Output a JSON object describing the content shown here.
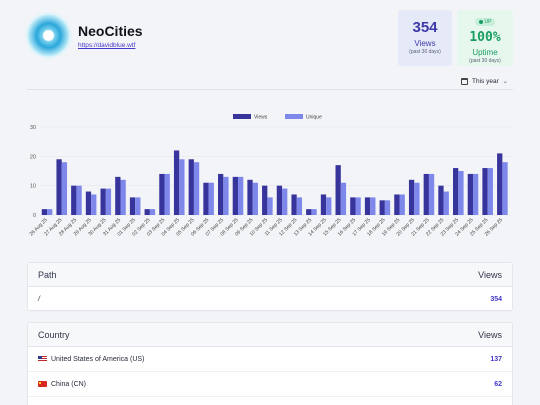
{
  "site": {
    "name": "NeoCities",
    "url": "https://davidblue.wtf"
  },
  "stats": {
    "views": {
      "value": "354",
      "label": "Views",
      "sub": "(past 30 days)"
    },
    "uptime": {
      "badge": "UP",
      "value": "100%",
      "label": "Uptime",
      "sub": "(past 30 days)"
    }
  },
  "period_selector": {
    "label": "This year"
  },
  "colors": {
    "views": "#37349c",
    "unique": "#7e87ea",
    "accent": "#4338ca",
    "uptime": "#199e62"
  },
  "chart_data": {
    "type": "bar",
    "categories": [
      "26 Aug 25",
      "27 Aug 25",
      "28 Aug 25",
      "29 Aug 25",
      "30 Aug 25",
      "31 Aug 25",
      "01 Sep 25",
      "02 Sep 25",
      "03 Sep 25",
      "04 Sep 25",
      "05 Sep 25",
      "06 Sep 25",
      "07 Sep 25",
      "08 Sep 25",
      "09 Sep 25",
      "10 Sep 25",
      "11 Sep 25",
      "12 Sep 25",
      "13 Sep 25",
      "14 Sep 25",
      "15 Sep 25",
      "16 Sep 25",
      "17 Sep 25",
      "18 Sep 25",
      "19 Sep 25",
      "20 Sep 25",
      "21 Sep 25",
      "22 Sep 25",
      "23 Sep 25",
      "24 Sep 25",
      "25 Sep 25",
      "26 Sep 25"
    ],
    "series": [
      {
        "name": "Views",
        "values": [
          2,
          19,
          10,
          8,
          9,
          13,
          6,
          2,
          14,
          22,
          19,
          11,
          14,
          13,
          12,
          10,
          10,
          7,
          2,
          7,
          17,
          6,
          6,
          5,
          7,
          12,
          14,
          10,
          16,
          14,
          16,
          21
        ]
      },
      {
        "name": "Unique",
        "values": [
          2,
          18,
          10,
          7,
          9,
          12,
          6,
          2,
          14,
          19,
          18,
          11,
          13,
          13,
          11,
          6,
          9,
          6,
          2,
          6,
          11,
          6,
          6,
          5,
          7,
          11,
          14,
          8,
          15,
          14,
          16,
          18
        ]
      }
    ],
    "yticks": [
      0,
      10,
      20,
      30
    ],
    "ylim": [
      0,
      30
    ],
    "grid": true,
    "legend": "top-center"
  },
  "paths": {
    "header": {
      "col1": "Path",
      "col2": "Views"
    },
    "rows": [
      {
        "path": "/",
        "views": "354"
      }
    ]
  },
  "countries": {
    "header": {
      "col1": "Country",
      "col2": "Views"
    },
    "rows": [
      {
        "name": "United States of America (US)",
        "views": "137"
      },
      {
        "name": "China (CN)",
        "views": "62"
      }
    ]
  }
}
